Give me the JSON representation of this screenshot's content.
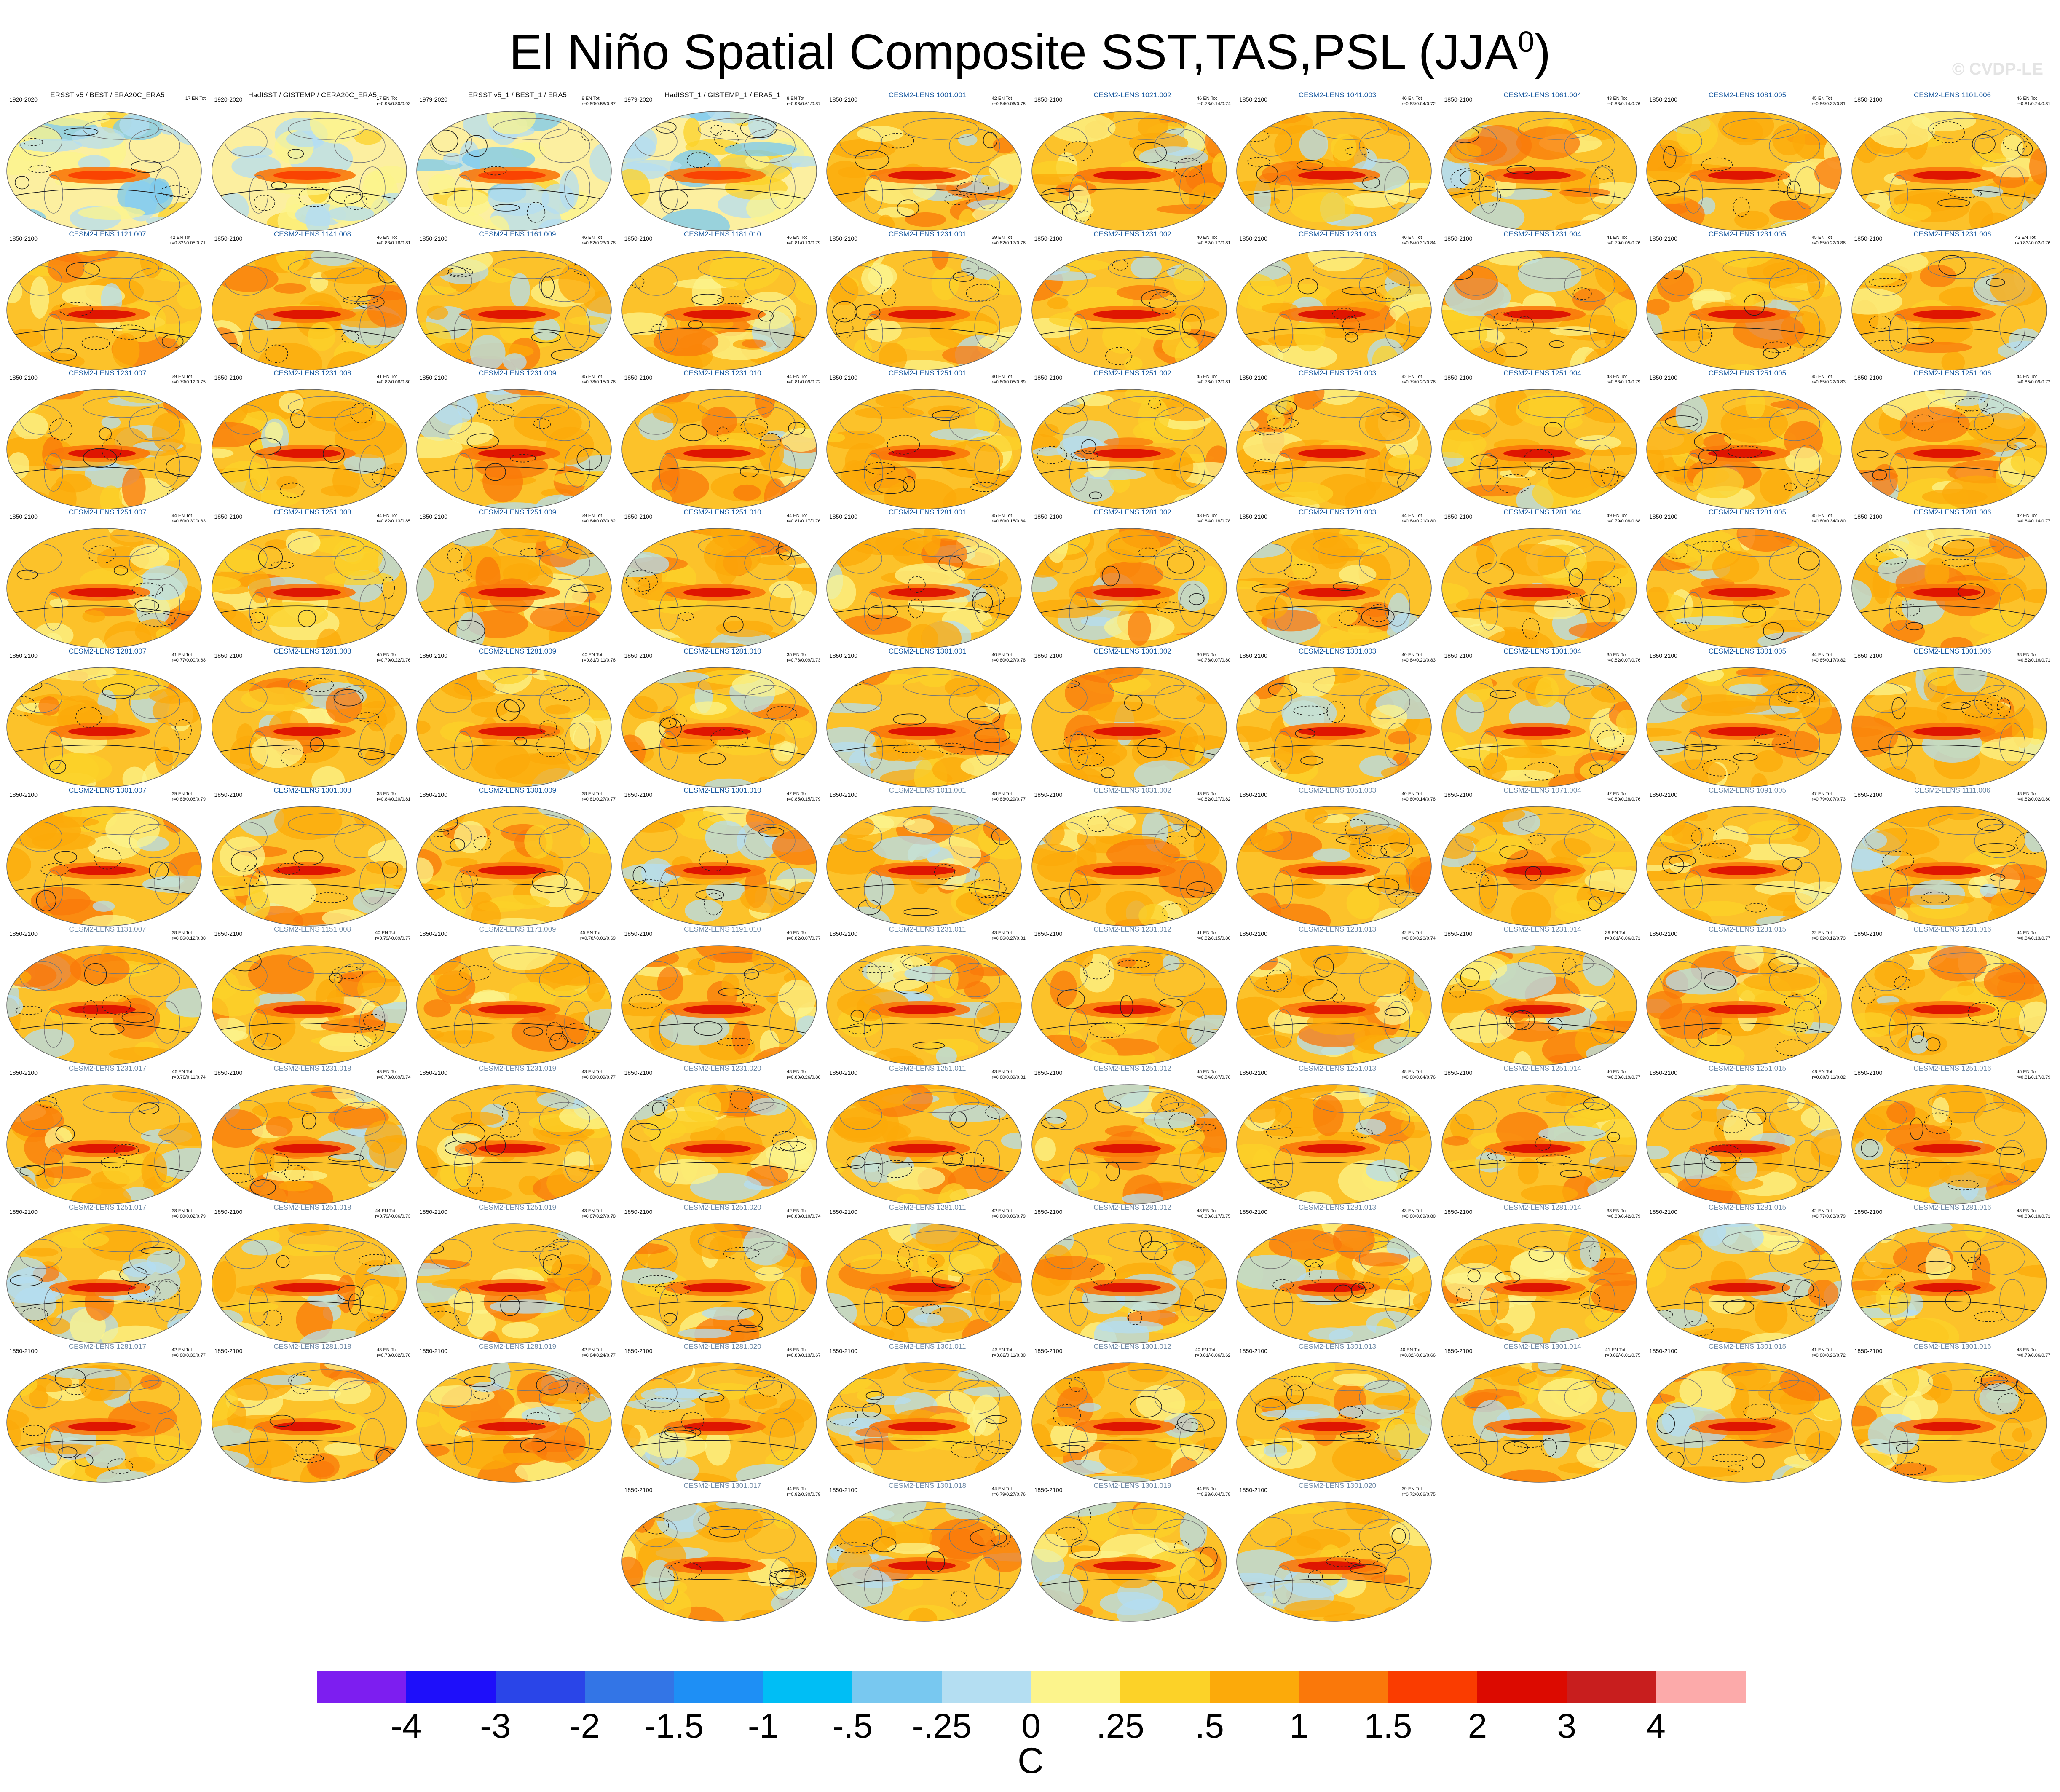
{
  "title": "El Niño Spatial Composite SST,TAS,PSL (JJA",
  "title_superscript": "0",
  "title_close": ")",
  "watermark": "© CVDP-LE",
  "panels": [
    {
      "name": "ERSST v5 / BEST / ERA20C_ERA5",
      "years": "1920-2020",
      "stats": "17 EN Tot",
      "style": "obs",
      "tone": "obs"
    },
    {
      "name": "HadISST / GISTEMP / CERA20C_ERA5",
      "years": "1920-2020",
      "stats": "17 EN Tot\nr=0.95/0.80/0.93",
      "style": "obs",
      "tone": "obs"
    },
    {
      "name": "ERSST v5_1 / BEST_1 / ERA5",
      "years": "1979-2020",
      "stats": "8 EN Tot\nr=0.89/0.58/0.87",
      "style": "obs",
      "tone": "obs"
    },
    {
      "name": "HadISST_1 / GISTEMP_1 / ERA5_1",
      "years": "1979-2020",
      "stats": "8 EN Tot\nr=0.96/0.61/0.87",
      "style": "obs",
      "tone": "obs"
    },
    {
      "name": "CESM2-LENS 1001.001",
      "years": "1850-2100",
      "stats": "42 EN Tot\nr=0.84/0.06/0.75",
      "style": "model",
      "tone": "warm"
    },
    {
      "name": "CESM2-LENS 1021.002",
      "years": "1850-2100",
      "stats": "46 EN Tot\nr=0.78/0.14/0.74",
      "style": "model",
      "tone": "warm"
    },
    {
      "name": "CESM2-LENS 1041.003",
      "years": "1850-2100",
      "stats": "40 EN Tot\nr=0.83/0.04/0.72",
      "style": "model",
      "tone": "warm"
    },
    {
      "name": "CESM2-LENS 1061.004",
      "years": "1850-2100",
      "stats": "43 EN Tot\nr=0.83/0.14/0.76",
      "style": "model",
      "tone": "warm"
    },
    {
      "name": "CESM2-LENS 1081.005",
      "years": "1850-2100",
      "stats": "45 EN Tot\nr=0.86/0.37/0.81",
      "style": "model",
      "tone": "warm"
    },
    {
      "name": "CESM2-LENS 1101.006",
      "years": "1850-2100",
      "stats": "46 EN Tot\nr=0.81/0.24/0.81",
      "style": "model",
      "tone": "warm"
    },
    {
      "name": "CESM2-LENS 1121.007",
      "years": "1850-2100",
      "stats": "42 EN Tot\nr=0.82/-0.05/0.71",
      "style": "model",
      "tone": "warm"
    },
    {
      "name": "CESM2-LENS 1141.008",
      "years": "1850-2100",
      "stats": "46 EN Tot\nr=0.83/0.16/0.81",
      "style": "model",
      "tone": "warm"
    },
    {
      "name": "CESM2-LENS 1161.009",
      "years": "1850-2100",
      "stats": "46 EN Tot\nr=0.82/0.23/0.78",
      "style": "model",
      "tone": "warm"
    },
    {
      "name": "CESM2-LENS 1181.010",
      "years": "1850-2100",
      "stats": "46 EN Tot\nr=0.81/0.13/0.79",
      "style": "model",
      "tone": "warm"
    },
    {
      "name": "CESM2-LENS 1231.001",
      "years": "1850-2100",
      "stats": "39 EN Tot\nr=0.82/0.17/0.76",
      "style": "model",
      "tone": "warm"
    },
    {
      "name": "CESM2-LENS 1231.002",
      "years": "1850-2100",
      "stats": "40 EN Tot\nr=0.82/0.17/0.81",
      "style": "model",
      "tone": "warm"
    },
    {
      "name": "CESM2-LENS 1231.003",
      "years": "1850-2100",
      "stats": "40 EN Tot\nr=0.84/0.31/0.84",
      "style": "model",
      "tone": "warm"
    },
    {
      "name": "CESM2-LENS 1231.004",
      "years": "1850-2100",
      "stats": "41 EN Tot\nr=0.79/0.05/0.76",
      "style": "model",
      "tone": "warm"
    },
    {
      "name": "CESM2-LENS 1231.005",
      "years": "1850-2100",
      "stats": "45 EN Tot\nr=0.85/0.22/0.86",
      "style": "model",
      "tone": "warm"
    },
    {
      "name": "CESM2-LENS 1231.006",
      "years": "1850-2100",
      "stats": "42 EN Tot\nr=0.83/-0.02/0.76",
      "style": "model",
      "tone": "warm"
    },
    {
      "name": "CESM2-LENS 1231.007",
      "years": "1850-2100",
      "stats": "39 EN Tot\nr=0.79/0.12/0.75",
      "style": "model",
      "tone": "warm"
    },
    {
      "name": "CESM2-LENS 1231.008",
      "years": "1850-2100",
      "stats": "41 EN Tot\nr=0.82/0.06/0.80",
      "style": "model",
      "tone": "warm"
    },
    {
      "name": "CESM2-LENS 1231.009",
      "years": "1850-2100",
      "stats": "45 EN Tot\nr=0.78/0.15/0.76",
      "style": "model",
      "tone": "warm"
    },
    {
      "name": "CESM2-LENS 1231.010",
      "years": "1850-2100",
      "stats": "44 EN Tot\nr=0.81/0.09/0.72",
      "style": "model",
      "tone": "warm"
    },
    {
      "name": "CESM2-LENS 1251.001",
      "years": "1850-2100",
      "stats": "40 EN Tot\nr=0.80/0.05/0.69",
      "style": "model",
      "tone": "warm"
    },
    {
      "name": "CESM2-LENS 1251.002",
      "years": "1850-2100",
      "stats": "45 EN Tot\nr=0.78/0.12/0.81",
      "style": "model",
      "tone": "warm"
    },
    {
      "name": "CESM2-LENS 1251.003",
      "years": "1850-2100",
      "stats": "42 EN Tot\nr=0.79/0.20/0.76",
      "style": "model",
      "tone": "warm"
    },
    {
      "name": "CESM2-LENS 1251.004",
      "years": "1850-2100",
      "stats": "43 EN Tot\nr=0.83/0.13/0.79",
      "style": "model",
      "tone": "warm"
    },
    {
      "name": "CESM2-LENS 1251.005",
      "years": "1850-2100",
      "stats": "45 EN Tot\nr=0.85/0.22/0.83",
      "style": "model",
      "tone": "warm"
    },
    {
      "name": "CESM2-LENS 1251.006",
      "years": "1850-2100",
      "stats": "44 EN Tot\nr=0.85/0.09/0.72",
      "style": "model",
      "tone": "warm"
    },
    {
      "name": "CESM2-LENS 1251.007",
      "years": "1850-2100",
      "stats": "44 EN Tot\nr=0.80/0.30/0.83",
      "style": "model",
      "tone": "warm"
    },
    {
      "name": "CESM2-LENS 1251.008",
      "years": "1850-2100",
      "stats": "44 EN Tot\nr=0.82/0.13/0.85",
      "style": "model",
      "tone": "warm"
    },
    {
      "name": "CESM2-LENS 1251.009",
      "years": "1850-2100",
      "stats": "39 EN Tot\nr=0.84/0.07/0.82",
      "style": "model",
      "tone": "warm"
    },
    {
      "name": "CESM2-LENS 1251.010",
      "years": "1850-2100",
      "stats": "44 EN Tot\nr=0.81/0.17/0.76",
      "style": "model",
      "tone": "warm"
    },
    {
      "name": "CESM2-LENS 1281.001",
      "years": "1850-2100",
      "stats": "45 EN Tot\nr=0.80/0.15/0.84",
      "style": "model",
      "tone": "warm"
    },
    {
      "name": "CESM2-LENS 1281.002",
      "years": "1850-2100",
      "stats": "43 EN Tot\nr=0.84/0.18/0.78",
      "style": "model",
      "tone": "warm"
    },
    {
      "name": "CESM2-LENS 1281.003",
      "years": "1850-2100",
      "stats": "44 EN Tot\nr=0.84/0.21/0.80",
      "style": "model",
      "tone": "warm"
    },
    {
      "name": "CESM2-LENS 1281.004",
      "years": "1850-2100",
      "stats": "49 EN Tot\nr=0.79/0.08/0.68",
      "style": "model",
      "tone": "warm"
    },
    {
      "name": "CESM2-LENS 1281.005",
      "years": "1850-2100",
      "stats": "45 EN Tot\nr=0.80/0.34/0.80",
      "style": "model",
      "tone": "warm"
    },
    {
      "name": "CESM2-LENS 1281.006",
      "years": "1850-2100",
      "stats": "42 EN Tot\nr=0.84/0.14/0.77",
      "style": "model",
      "tone": "warm"
    },
    {
      "name": "CESM2-LENS 1281.007",
      "years": "1850-2100",
      "stats": "41 EN Tot\nr=0.77/0.00/0.68",
      "style": "model",
      "tone": "warm"
    },
    {
      "name": "CESM2-LENS 1281.008",
      "years": "1850-2100",
      "stats": "45 EN Tot\nr=0.79/0.22/0.76",
      "style": "model",
      "tone": "warm"
    },
    {
      "name": "CESM2-LENS 1281.009",
      "years": "1850-2100",
      "stats": "40 EN Tot\nr=0.81/0.11/0.76",
      "style": "model",
      "tone": "warm"
    },
    {
      "name": "CESM2-LENS 1281.010",
      "years": "1850-2100",
      "stats": "35 EN Tot\nr=0.78/0.09/0.73",
      "style": "model",
      "tone": "warm"
    },
    {
      "name": "CESM2-LENS 1301.001",
      "years": "1850-2100",
      "stats": "40 EN Tot\nr=0.80/0.27/0.78",
      "style": "model",
      "tone": "warm"
    },
    {
      "name": "CESM2-LENS 1301.002",
      "years": "1850-2100",
      "stats": "36 EN Tot\nr=0.78/0.07/0.80",
      "style": "model",
      "tone": "warm"
    },
    {
      "name": "CESM2-LENS 1301.003",
      "years": "1850-2100",
      "stats": "40 EN Tot\nr=0.84/0.21/0.83",
      "style": "model",
      "tone": "warm"
    },
    {
      "name": "CESM2-LENS 1301.004",
      "years": "1850-2100",
      "stats": "35 EN Tot\nr=0.82/0.07/0.76",
      "style": "model",
      "tone": "warm"
    },
    {
      "name": "CESM2-LENS 1301.005",
      "years": "1850-2100",
      "stats": "44 EN Tot\nr=0.85/0.17/0.82",
      "style": "model",
      "tone": "warm"
    },
    {
      "name": "CESM2-LENS 1301.006",
      "years": "1850-2100",
      "stats": "38 EN Tot\nr=0.82/0.16/0.71",
      "style": "model",
      "tone": "warm"
    },
    {
      "name": "CESM2-LENS 1301.007",
      "years": "1850-2100",
      "stats": "39 EN Tot\nr=0.83/0.06/0.79",
      "style": "model",
      "tone": "warm"
    },
    {
      "name": "CESM2-LENS 1301.008",
      "years": "1850-2100",
      "stats": "38 EN Tot\nr=0.84/0.20/0.81",
      "style": "model",
      "tone": "warm"
    },
    {
      "name": "CESM2-LENS 1301.009",
      "years": "1850-2100",
      "stats": "38 EN Tot\nr=0.81/0.27/0.77",
      "style": "model",
      "tone": "warm"
    },
    {
      "name": "CESM2-LENS 1301.010",
      "years": "1850-2100",
      "stats": "42 EN Tot\nr=0.85/0.15/0.79",
      "style": "model",
      "tone": "warm"
    },
    {
      "name": "CESM2-LENS 1011.001",
      "years": "1850-2100",
      "stats": "48 EN Tot\nr=0.83/0.29/0.77",
      "style": "grey",
      "tone": "warm"
    },
    {
      "name": "CESM2-LENS 1031.002",
      "years": "1850-2100",
      "stats": "43 EN Tot\nr=0.82/0.27/0.82",
      "style": "grey",
      "tone": "warm"
    },
    {
      "name": "CESM2-LENS 1051.003",
      "years": "1850-2100",
      "stats": "40 EN Tot\nr=0.80/0.14/0.78",
      "style": "grey",
      "tone": "warm"
    },
    {
      "name": "CESM2-LENS 1071.004",
      "years": "1850-2100",
      "stats": "42 EN Tot\nr=0.80/0.28/0.76",
      "style": "grey",
      "tone": "warm"
    },
    {
      "name": "CESM2-LENS 1091.005",
      "years": "1850-2100",
      "stats": "47 EN Tot\nr=0.79/0.07/0.73",
      "style": "grey",
      "tone": "warm"
    },
    {
      "name": "CESM2-LENS 1111.006",
      "years": "1850-2100",
      "stats": "48 EN Tot\nr=0.82/0.02/0.80",
      "style": "grey",
      "tone": "warm"
    },
    {
      "name": "CESM2-LENS 1131.007",
      "years": "1850-2100",
      "stats": "38 EN Tot\nr=0.86/0.12/0.88",
      "style": "grey",
      "tone": "warm"
    },
    {
      "name": "CESM2-LENS 1151.008",
      "years": "1850-2100",
      "stats": "40 EN Tot\nr=0.79/-0.09/0.77",
      "style": "grey",
      "tone": "warm"
    },
    {
      "name": "CESM2-LENS 1171.009",
      "years": "1850-2100",
      "stats": "45 EN Tot\nr=0.78/-0.01/0.69",
      "style": "grey",
      "tone": "warm"
    },
    {
      "name": "CESM2-LENS 1191.010",
      "years": "1850-2100",
      "stats": "46 EN Tot\nr=0.82/0.07/0.77",
      "style": "grey",
      "tone": "warm"
    },
    {
      "name": "CESM2-LENS 1231.011",
      "years": "1850-2100",
      "stats": "43 EN Tot\nr=0.86/0.27/0.81",
      "style": "grey",
      "tone": "warm"
    },
    {
      "name": "CESM2-LENS 1231.012",
      "years": "1850-2100",
      "stats": "41 EN Tot\nr=0.82/0.15/0.80",
      "style": "grey",
      "tone": "warm"
    },
    {
      "name": "CESM2-LENS 1231.013",
      "years": "1850-2100",
      "stats": "42 EN Tot\nr=0.83/0.20/0.74",
      "style": "grey",
      "tone": "warm"
    },
    {
      "name": "CESM2-LENS 1231.014",
      "years": "1850-2100",
      "stats": "39 EN Tot\nr=0.81/-0.06/0.71",
      "style": "grey",
      "tone": "warm"
    },
    {
      "name": "CESM2-LENS 1231.015",
      "years": "1850-2100",
      "stats": "32 EN Tot\nr=0.82/0.12/0.73",
      "style": "grey",
      "tone": "warm"
    },
    {
      "name": "CESM2-LENS 1231.016",
      "years": "1850-2100",
      "stats": "44 EN Tot\nr=0.84/0.13/0.77",
      "style": "grey",
      "tone": "warm"
    },
    {
      "name": "CESM2-LENS 1231.017",
      "years": "1850-2100",
      "stats": "46 EN Tot\nr=0.78/0.11/0.74",
      "style": "grey",
      "tone": "warm"
    },
    {
      "name": "CESM2-LENS 1231.018",
      "years": "1850-2100",
      "stats": "43 EN Tot\nr=0.78/0.09/0.74",
      "style": "grey",
      "tone": "warm"
    },
    {
      "name": "CESM2-LENS 1231.019",
      "years": "1850-2100",
      "stats": "43 EN Tot\nr=0.80/0.09/0.77",
      "style": "grey",
      "tone": "warm"
    },
    {
      "name": "CESM2-LENS 1231.020",
      "years": "1850-2100",
      "stats": "48 EN Tot\nr=0.80/0.26/0.80",
      "style": "grey",
      "tone": "warm"
    },
    {
      "name": "CESM2-LENS 1251.011",
      "years": "1850-2100",
      "stats": "43 EN Tot\nr=0.80/0.39/0.81",
      "style": "grey",
      "tone": "warm"
    },
    {
      "name": "CESM2-LENS 1251.012",
      "years": "1850-2100",
      "stats": "45 EN Tot\nr=0.84/0.07/0.76",
      "style": "grey",
      "tone": "warm"
    },
    {
      "name": "CESM2-LENS 1251.013",
      "years": "1850-2100",
      "stats": "48 EN Tot\nr=0.80/0.04/0.76",
      "style": "grey",
      "tone": "warm"
    },
    {
      "name": "CESM2-LENS 1251.014",
      "years": "1850-2100",
      "stats": "46 EN Tot\nr=0.80/0.19/0.77",
      "style": "grey",
      "tone": "warm"
    },
    {
      "name": "CESM2-LENS 1251.015",
      "years": "1850-2100",
      "stats": "48 EN Tot\nr=0.80/0.11/0.82",
      "style": "grey",
      "tone": "warm"
    },
    {
      "name": "CESM2-LENS 1251.016",
      "years": "1850-2100",
      "stats": "45 EN Tot\nr=0.81/0.17/0.79",
      "style": "grey",
      "tone": "warm"
    },
    {
      "name": "CESM2-LENS 1251.017",
      "years": "1850-2100",
      "stats": "38 EN Tot\nr=0.80/0.02/0.79",
      "style": "grey",
      "tone": "warm"
    },
    {
      "name": "CESM2-LENS 1251.018",
      "years": "1850-2100",
      "stats": "44 EN Tot\nr=0.79/-0.06/0.73",
      "style": "grey",
      "tone": "warm"
    },
    {
      "name": "CESM2-LENS 1251.019",
      "years": "1850-2100",
      "stats": "43 EN Tot\nr=0.87/0.27/0.78",
      "style": "grey",
      "tone": "warm"
    },
    {
      "name": "CESM2-LENS 1251.020",
      "years": "1850-2100",
      "stats": "42 EN Tot\nr=0.83/0.10/0.74",
      "style": "grey",
      "tone": "warm"
    },
    {
      "name": "CESM2-LENS 1281.011",
      "years": "1850-2100",
      "stats": "42 EN Tot\nr=0.80/0.00/0.79",
      "style": "grey",
      "tone": "warm"
    },
    {
      "name": "CESM2-LENS 1281.012",
      "years": "1850-2100",
      "stats": "48 EN Tot\nr=0.80/0.17/0.75",
      "style": "grey",
      "tone": "warm"
    },
    {
      "name": "CESM2-LENS 1281.013",
      "years": "1850-2100",
      "stats": "43 EN Tot\nr=0.80/0.09/0.80",
      "style": "grey",
      "tone": "warm"
    },
    {
      "name": "CESM2-LENS 1281.014",
      "years": "1850-2100",
      "stats": "38 EN Tot\nr=0.80/0.42/0.79",
      "style": "grey",
      "tone": "warm"
    },
    {
      "name": "CESM2-LENS 1281.015",
      "years": "1850-2100",
      "stats": "42 EN Tot\nr=0.77/0.03/0.79",
      "style": "grey",
      "tone": "warm"
    },
    {
      "name": "CESM2-LENS 1281.016",
      "years": "1850-2100",
      "stats": "43 EN Tot\nr=0.80/0.10/0.71",
      "style": "grey",
      "tone": "warm"
    },
    {
      "name": "CESM2-LENS 1281.017",
      "years": "1850-2100",
      "stats": "42 EN Tot\nr=0.80/0.36/0.77",
      "style": "grey",
      "tone": "warm"
    },
    {
      "name": "CESM2-LENS 1281.018",
      "years": "1850-2100",
      "stats": "43 EN Tot\nr=0.78/0.02/0.76",
      "style": "grey",
      "tone": "warm"
    },
    {
      "name": "CESM2-LENS 1281.019",
      "years": "1850-2100",
      "stats": "42 EN Tot\nr=0.84/0.24/0.77",
      "style": "grey",
      "tone": "warm"
    },
    {
      "name": "CESM2-LENS 1281.020",
      "years": "1850-2100",
      "stats": "46 EN Tot\nr=0.80/0.13/0.67",
      "style": "grey",
      "tone": "warm"
    },
    {
      "name": "CESM2-LENS 1301.011",
      "years": "1850-2100",
      "stats": "43 EN Tot\nr=0.82/0.11/0.80",
      "style": "grey",
      "tone": "warm"
    },
    {
      "name": "CESM2-LENS 1301.012",
      "years": "1850-2100",
      "stats": "40 EN Tot\nr=0.81/-0.06/0.62",
      "style": "grey",
      "tone": "warm"
    },
    {
      "name": "CESM2-LENS 1301.013",
      "years": "1850-2100",
      "stats": "40 EN Tot\nr=0.82/-0.01/0.66",
      "style": "grey",
      "tone": "warm"
    },
    {
      "name": "CESM2-LENS 1301.014",
      "years": "1850-2100",
      "stats": "41 EN Tot\nr=0.82/-0.01/0.75",
      "style": "grey",
      "tone": "warm"
    },
    {
      "name": "CESM2-LENS 1301.015",
      "years": "1850-2100",
      "stats": "41 EN Tot\nr=0.80/0.20/0.72",
      "style": "grey",
      "tone": "warm"
    },
    {
      "name": "CESM2-LENS 1301.016",
      "years": "1850-2100",
      "stats": "43 EN Tot\nr=0.79/0.06/0.77",
      "style": "grey",
      "tone": "warm"
    },
    {
      "name": "CESM2-LENS 1301.017",
      "years": "1850-2100",
      "stats": "44 EN Tot\nr=0.82/0.30/0.79",
      "style": "grey",
      "tone": "warm"
    },
    {
      "name": "CESM2-LENS 1301.018",
      "years": "1850-2100",
      "stats": "44 EN Tot\nr=0.79/0.27/0.76",
      "style": "grey",
      "tone": "warm"
    },
    {
      "name": "CESM2-LENS 1301.019",
      "years": "1850-2100",
      "stats": "44 EN Tot\nr=0.83/0.04/0.78",
      "style": "grey",
      "tone": "warm"
    },
    {
      "name": "CESM2-LENS 1301.020",
      "years": "1850-2100",
      "stats": "39 EN Tot\nr=0.72/0.06/0.75",
      "style": "grey",
      "tone": "warm"
    }
  ],
  "colorbar": {
    "colors": [
      "#7d1ef0",
      "#1e0ffa",
      "#2a45e8",
      "#3375e6",
      "#1e8ff5",
      "#00bef5",
      "#78c8f0",
      "#b4def2",
      "#fcf48c",
      "#fcd228",
      "#fcaa0a",
      "#fa780a",
      "#fa3c00",
      "#dc0a00",
      "#c81e1e",
      "#fcaaaa"
    ],
    "ticks": [
      "-4",
      "-3",
      "-2",
      "-1.5",
      "-1",
      "-.5",
      "-.25",
      "0",
      ".25",
      ".5",
      "1",
      "1.5",
      "2",
      "3",
      "4"
    ],
    "units": "C"
  },
  "chart_data": {
    "type": "heatmap",
    "title": "El Niño Spatial Composite SST,TAS,PSL (JJA0)",
    "colorbar_levels": [
      -4,
      -3,
      -2,
      -1.5,
      -1,
      -0.5,
      -0.25,
      0,
      0.25,
      0.5,
      1,
      1.5,
      2,
      3,
      4
    ],
    "colorbar_units": "C",
    "panel_count": 104,
    "projection": "global map",
    "contours": "PSL (solid positive, dashed negative)"
  }
}
